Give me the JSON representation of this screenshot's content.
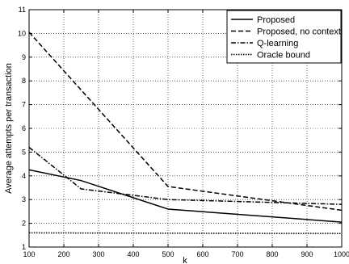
{
  "chart_data": {
    "type": "line",
    "title": "",
    "xlabel": "k",
    "ylabel": "Average attempts per transaction",
    "xlim": [
      100,
      1000
    ],
    "ylim": [
      1,
      11
    ],
    "xticks": [
      100,
      200,
      300,
      400,
      500,
      600,
      700,
      800,
      900,
      1000
    ],
    "yticks": [
      1,
      2,
      3,
      4,
      5,
      6,
      7,
      8,
      9,
      10,
      11
    ],
    "grid": true,
    "legend_position": "top-right",
    "series": [
      {
        "name": "Proposed",
        "style": "solid",
        "x": [
          100,
          250,
          500,
          1000
        ],
        "y": [
          4.25,
          3.8,
          2.6,
          2.05
        ]
      },
      {
        "name": "Proposed, no context",
        "style": "dashed",
        "x": [
          100,
          500,
          1000
        ],
        "y": [
          10.05,
          3.55,
          2.55
        ]
      },
      {
        "name": "Q-learning",
        "style": "dashdot",
        "x": [
          100,
          250,
          500,
          1000
        ],
        "y": [
          5.2,
          3.45,
          3.0,
          2.8
        ]
      },
      {
        "name": "Oracle bound",
        "style": "dotted",
        "x": [
          100,
          500,
          1000
        ],
        "y": [
          1.6,
          1.58,
          1.57
        ]
      }
    ]
  }
}
